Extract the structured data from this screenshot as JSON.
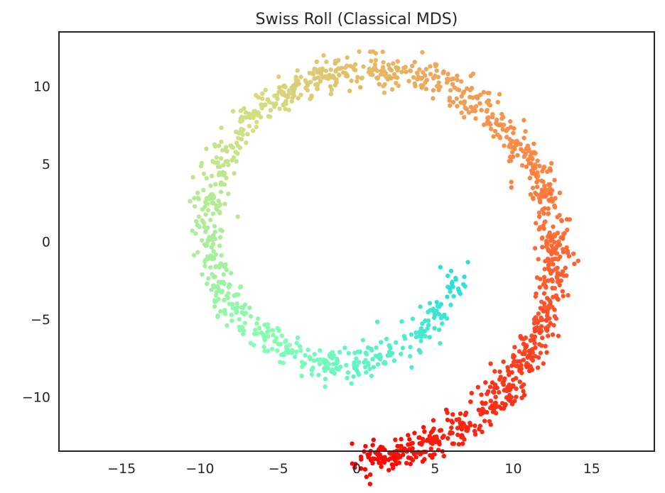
{
  "chart_data": {
    "type": "scatter",
    "title": "Swiss Roll (Classical MDS)",
    "xlabel": "",
    "ylabel": "",
    "xlim": [
      -19,
      19
    ],
    "ylim": [
      -13.5,
      13.5
    ],
    "xticks": [
      -15,
      -10,
      -5,
      0,
      5,
      10,
      15
    ],
    "yticks": [
      -10,
      -5,
      0,
      5,
      10
    ],
    "xtick_labels": [
      "−15",
      "−10",
      "−5",
      "0",
      "5",
      "10",
      "15"
    ],
    "ytick_labels": [
      "−10",
      "−5",
      "0",
      "5",
      "10"
    ],
    "grid": false,
    "colormap": "rainbow",
    "n_points": 1500,
    "spiral": {
      "t_range": [
        4.712,
        14.137
      ],
      "x_formula": "t*cos(t)",
      "y_formula": "-t*sin(t)",
      "color_by": "t"
    },
    "point_color_stops": [
      "#8000ff",
      "#2adddd",
      "#80ffb4",
      "#d4dd80",
      "#ff8040",
      "#ff0000"
    ]
  }
}
